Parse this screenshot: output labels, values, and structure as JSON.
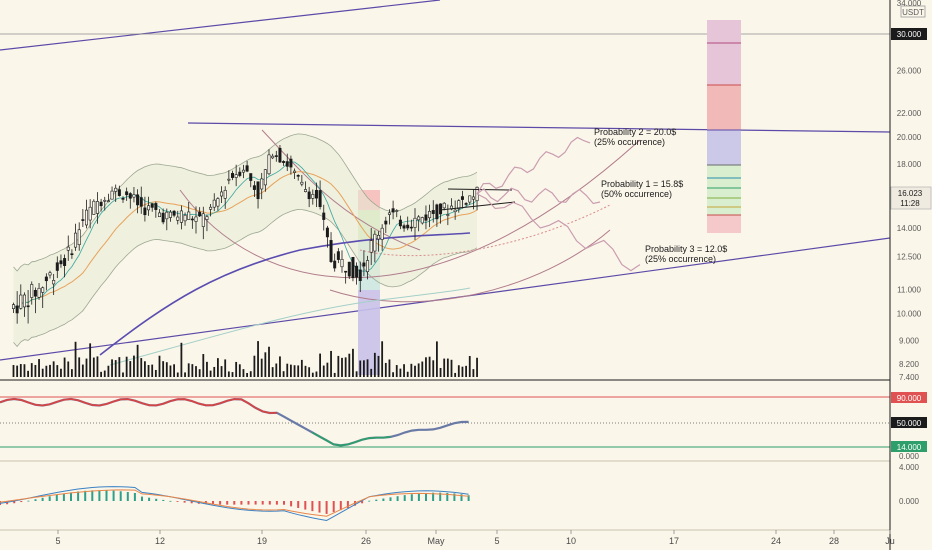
{
  "chart_data": [
    {
      "panel": "price",
      "type": "candlestick",
      "quote_currency": "USDT",
      "last_price": "16.023",
      "countdown": "11:28",
      "y_ticks": [
        "34.000",
        "30.000",
        "26.000",
        "22.000",
        "20.000",
        "18.000",
        "16.000",
        "14.000",
        "12.500",
        "11.000",
        "10.000",
        "9.000",
        "8.200",
        "7.400"
      ],
      "ylim": [
        7.4,
        34.0
      ],
      "scale": "log",
      "highlighted_level": "30.000",
      "close_series": [
        {
          "date": "2021-04-01",
          "close": 10.2
        },
        {
          "date": "2021-04-02",
          "close": 10.6
        },
        {
          "date": "2021-04-03",
          "close": 11.0
        },
        {
          "date": "2021-04-04",
          "close": 11.8
        },
        {
          "date": "2021-04-05",
          "close": 12.6
        },
        {
          "date": "2021-04-06",
          "close": 14.5
        },
        {
          "date": "2021-04-07",
          "close": 15.5
        },
        {
          "date": "2021-04-08",
          "close": 16.2
        },
        {
          "date": "2021-04-09",
          "close": 16.0
        },
        {
          "date": "2021-04-10",
          "close": 15.2
        },
        {
          "date": "2021-04-11",
          "close": 14.9
        },
        {
          "date": "2021-04-12",
          "close": 14.6
        },
        {
          "date": "2021-04-13",
          "close": 14.8
        },
        {
          "date": "2021-04-14",
          "close": 14.4
        },
        {
          "date": "2021-04-15",
          "close": 15.2
        },
        {
          "date": "2021-04-16",
          "close": 17.0
        },
        {
          "date": "2021-04-17",
          "close": 17.8
        },
        {
          "date": "2021-04-18",
          "close": 16.0
        },
        {
          "date": "2021-04-19",
          "close": 19.0
        },
        {
          "date": "2021-04-20",
          "close": 18.0
        },
        {
          "date": "2021-04-21",
          "close": 16.5
        },
        {
          "date": "2021-04-22",
          "close": 15.8
        },
        {
          "date": "2021-04-23",
          "close": 12.4
        },
        {
          "date": "2021-04-24",
          "close": 12.1
        },
        {
          "date": "2021-04-25",
          "close": 11.8
        },
        {
          "date": "2021-04-26",
          "close": 13.5
        },
        {
          "date": "2021-04-27",
          "close": 14.8
        },
        {
          "date": "2021-04-28",
          "close": 14.3
        },
        {
          "date": "2021-04-29",
          "close": 14.5
        },
        {
          "date": "2021-04-30",
          "close": 14.9
        },
        {
          "date": "2021-05-01",
          "close": 15.1
        },
        {
          "date": "2021-05-02",
          "close": 15.6
        },
        {
          "date": "2021-05-03",
          "close": 16.0
        }
      ],
      "projections": [
        {
          "label": "Probability 2 = 20.0$",
          "sublabel": "(25% occurrence)",
          "target": 20.0
        },
        {
          "label": "Probability 1 = 15.8$",
          "sublabel": "(50% occurrence)",
          "target": 15.8
        },
        {
          "label": "Probability 3 = 12.0$",
          "sublabel": "(25% occurrence)",
          "target": 12.0
        }
      ],
      "colors": {
        "candles": "#1b1b1b",
        "channel": "#5b4aa8",
        "ma_long": "#5a4db0",
        "ema_fast": "#e8a25b",
        "bollinger": "#9ca892",
        "projection": "#c99db0",
        "arcs": "#b07c8c"
      }
    },
    {
      "panel": "rsi",
      "type": "line",
      "levels": [
        {
          "value": "90.000",
          "color": "#e05252"
        },
        {
          "value": "50.000",
          "color": "#1b1b1b"
        },
        {
          "value": "14.000",
          "color": "#2e9f6a"
        }
      ],
      "y_ticks": [
        "0.000"
      ]
    },
    {
      "panel": "macd",
      "type": "line+histogram",
      "y_ticks": [
        "4.000",
        "0.000"
      ]
    },
    {
      "panel": "x_axis",
      "x_ticks": [
        "5",
        "12",
        "19",
        "26",
        "May",
        "5",
        "10",
        "17",
        "24",
        "28",
        "Ju"
      ]
    }
  ]
}
